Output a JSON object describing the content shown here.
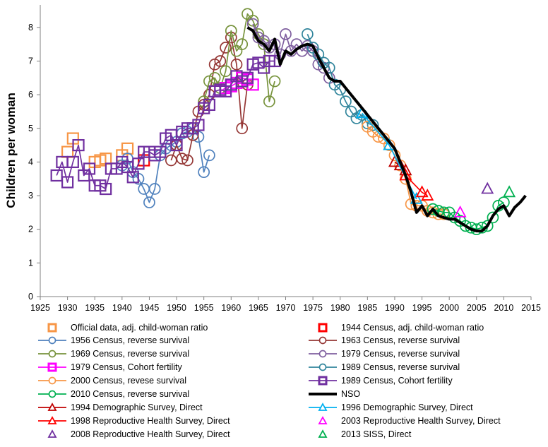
{
  "chart_data": {
    "type": "line",
    "ylabel": "Children per woman",
    "xlabel": "",
    "xlim": [
      1925,
      2015
    ],
    "ylim": [
      0,
      8.5
    ],
    "x_ticks": [
      1925,
      1930,
      1935,
      1940,
      1945,
      1950,
      1955,
      1960,
      1965,
      1970,
      1975,
      1980,
      1985,
      1990,
      1995,
      2000,
      2005,
      2010,
      2015
    ],
    "y_ticks": [
      0,
      1,
      2,
      3,
      4,
      5,
      6,
      7,
      8
    ],
    "legend_position": "bottom, two columns",
    "series": [
      {
        "name": "Official data, adj. child-woman ratio",
        "color": "#f79646",
        "marker": "square",
        "line": false,
        "x": [
          1930,
          1931,
          1935,
          1936,
          1937,
          1940,
          1941
        ],
        "y": [
          4.3,
          4.7,
          4.0,
          4.05,
          4.1,
          4.2,
          4.4
        ]
      },
      {
        "name": "1944 Census, adj. child-woman ratio",
        "color": "#ff0000",
        "marker": "square",
        "line": false,
        "x": [
          1944
        ],
        "y": [
          4.05
        ]
      },
      {
        "name": "1956 Census, reverse survival",
        "color": "#4f81bd",
        "marker": "circle",
        "line": true,
        "x": [
          1940,
          1941,
          1942,
          1943,
          1944,
          1945,
          1946,
          1947,
          1948,
          1949,
          1950,
          1951,
          1952,
          1953,
          1954,
          1955,
          1956
        ],
        "y": [
          3.9,
          4.1,
          3.7,
          3.5,
          3.2,
          2.8,
          3.2,
          4.2,
          4.4,
          4.5,
          4.6,
          4.85,
          4.9,
          5.0,
          4.75,
          3.7,
          4.2
        ]
      },
      {
        "name": "1963 Census, reverse survival",
        "color": "#953735",
        "marker": "circle",
        "line": true,
        "x": [
          1949,
          1950,
          1951,
          1952,
          1953,
          1954,
          1955,
          1956,
          1957,
          1958,
          1959,
          1960,
          1961,
          1962,
          1963
        ],
        "y": [
          4.05,
          4.5,
          4.1,
          4.05,
          4.8,
          5.5,
          5.7,
          6.0,
          6.9,
          7.0,
          7.4,
          7.7,
          6.9,
          5.0,
          6.3
        ]
      },
      {
        "name": "1969 Census, reverse survival",
        "color": "#77933c",
        "marker": "circle",
        "line": true,
        "x": [
          1955,
          1956,
          1957,
          1958,
          1959,
          1960,
          1961,
          1962,
          1963,
          1964,
          1965,
          1966,
          1967,
          1968
        ],
        "y": [
          5.8,
          6.4,
          6.5,
          6.2,
          6.7,
          7.9,
          7.3,
          7.5,
          8.4,
          8.2,
          7.8,
          7.5,
          5.8,
          6.4
        ]
      },
      {
        "name": "1979 Census, reverse survival",
        "color": "#7f5f9f",
        "marker": "circle",
        "line": true,
        "x": [
          1964,
          1965,
          1966,
          1967,
          1968,
          1969,
          1970,
          1971,
          1972,
          1973,
          1974,
          1975,
          1976,
          1977,
          1978
        ],
        "y": [
          8.1,
          7.7,
          7.6,
          7.4,
          7.5,
          7.2,
          7.8,
          7.3,
          7.5,
          7.3,
          7.45,
          7.3,
          6.9,
          6.8,
          6.5
        ]
      },
      {
        "name": "1979 Census, Cohort fertility",
        "color": "#ff00ff",
        "marker": "square",
        "line": true,
        "x": [
          1958,
          1959,
          1960,
          1961,
          1962,
          1963,
          1964
        ],
        "y": [
          6.1,
          6.2,
          6.25,
          6.35,
          6.5,
          6.45,
          6.3
        ]
      },
      {
        "name": "1989 Census, reverse survival",
        "color": "#31859c",
        "marker": "circle",
        "line": true,
        "x": [
          1974,
          1975,
          1976,
          1977,
          1978,
          1979,
          1980,
          1981,
          1982,
          1983,
          1984,
          1985,
          1986
        ],
        "y": [
          7.8,
          7.4,
          7.2,
          6.95,
          6.8,
          6.3,
          6.15,
          5.8,
          5.5,
          5.3,
          5.4,
          5.15,
          5.1
        ]
      },
      {
        "name": "2000 Census, revese survival",
        "color": "#f79646",
        "marker": "circle",
        "line": true,
        "x": [
          1985,
          1986,
          1987,
          1988,
          1989,
          1990,
          1991,
          1992,
          1993,
          1994,
          1995,
          1996,
          1997,
          1998,
          1999
        ],
        "y": [
          5.05,
          4.9,
          4.75,
          4.7,
          4.5,
          4.2,
          3.9,
          3.5,
          2.75,
          2.7,
          2.7,
          2.55,
          2.5,
          2.45,
          2.45
        ]
      },
      {
        "name": "1989 Census, Cohort fertility",
        "color": "#7030a0",
        "marker": "square",
        "line": true,
        "x": [
          1928,
          1929,
          1930,
          1931,
          1932,
          1933,
          1934,
          1935,
          1936,
          1937,
          1938,
          1939,
          1940,
          1941,
          1942,
          1943,
          1944,
          1945,
          1946,
          1947,
          1948,
          1949,
          1950,
          1951,
          1952,
          1953,
          1954,
          1955,
          1956,
          1957,
          1958,
          1959,
          1960,
          1961,
          1962,
          1963,
          1964,
          1965,
          1966,
          1967,
          1968
        ],
        "y": [
          3.6,
          4.0,
          3.4,
          4.0,
          4.5,
          3.6,
          3.8,
          3.3,
          3.3,
          3.2,
          3.8,
          3.8,
          4.0,
          3.85,
          3.55,
          3.95,
          4.3,
          4.3,
          4.2,
          4.3,
          4.7,
          4.8,
          4.5,
          4.9,
          5.0,
          5.0,
          5.1,
          5.6,
          5.7,
          6.1,
          6.15,
          6.1,
          6.3,
          6.55,
          6.4,
          6.5,
          6.9,
          6.95,
          6.8,
          7.0,
          7.0
        ]
      },
      {
        "name": "2010 Census, reverse survival",
        "color": "#00b050",
        "marker": "circle",
        "line": true,
        "x": [
          1997,
          1998,
          1999,
          2000,
          2001,
          2002,
          2003,
          2004,
          2005,
          2006,
          2007,
          2008,
          2009,
          2010
        ],
        "y": [
          2.6,
          2.55,
          2.5,
          2.5,
          2.35,
          2.25,
          2.1,
          2.05,
          2.0,
          2.05,
          2.1,
          2.35,
          2.7,
          2.8
        ]
      },
      {
        "name": "NSO",
        "color": "#000000",
        "marker": "none",
        "line": true,
        "x": [
          1963,
          1964,
          1965,
          1966,
          1967,
          1968,
          1969,
          1970,
          1971,
          1972,
          1973,
          1974,
          1975,
          1976,
          1977,
          1978,
          1979,
          1980,
          1981,
          1982,
          1983,
          1984,
          1985,
          1986,
          1987,
          1988,
          1989,
          1990,
          1991,
          1992,
          1993,
          1994,
          1995,
          1996,
          1997,
          1998,
          1999,
          2000,
          2001,
          2002,
          2003,
          2004,
          2005,
          2006,
          2007,
          2008,
          2009,
          2010,
          2011,
          2012,
          2013,
          2014
        ],
        "y": [
          8.0,
          7.9,
          7.6,
          7.5,
          7.3,
          7.65,
          6.9,
          7.3,
          7.2,
          7.35,
          7.45,
          7.5,
          7.45,
          7.1,
          6.8,
          6.5,
          6.4,
          6.4,
          6.2,
          6.0,
          5.8,
          5.6,
          5.4,
          5.2,
          5.0,
          4.8,
          4.6,
          4.4,
          4.0,
          3.6,
          3.1,
          2.5,
          2.7,
          2.4,
          2.6,
          2.4,
          2.35,
          2.3,
          2.3,
          2.2,
          2.1,
          2.0,
          1.95,
          1.95,
          2.1,
          2.4,
          2.6,
          2.7,
          2.4,
          2.65,
          2.8,
          3.0
        ]
      },
      {
        "name": "1994 Demographic Survey, Direct",
        "color": "#c00000",
        "marker": "triangle",
        "line": true,
        "x": [
          1990,
          1991,
          1992
        ],
        "y": [
          4.0,
          3.9,
          3.75
        ]
      },
      {
        "name": "1996 Demographic Survey, Direct",
        "color": "#00b0f0",
        "marker": "triangle",
        "line": true,
        "x": [
          1984,
          1989,
          1994
        ],
        "y": [
          5.45,
          4.5,
          2.9
        ]
      },
      {
        "name": "1998 Reproductive Health Survey, Direct",
        "color": "#ff0000",
        "marker": "triangle",
        "line": true,
        "x": [
          1992,
          1995,
          1996
        ],
        "y": [
          3.6,
          3.1,
          3.0
        ]
      },
      {
        "name": "2003 Reproductive Health Survey, Direct",
        "color": "#ff00ff",
        "marker": "triangle",
        "line": false,
        "x": [
          2002
        ],
        "y": [
          2.5
        ]
      },
      {
        "name": "2008 Reproductive Health Survey, Direct",
        "color": "#7030a0",
        "marker": "triangle",
        "line": false,
        "x": [
          2007
        ],
        "y": [
          3.2
        ]
      },
      {
        "name": "2013 SISS, Direct",
        "color": "#00b050",
        "marker": "triangle",
        "line": false,
        "x": [
          2011
        ],
        "y": [
          3.1
        ]
      }
    ]
  }
}
